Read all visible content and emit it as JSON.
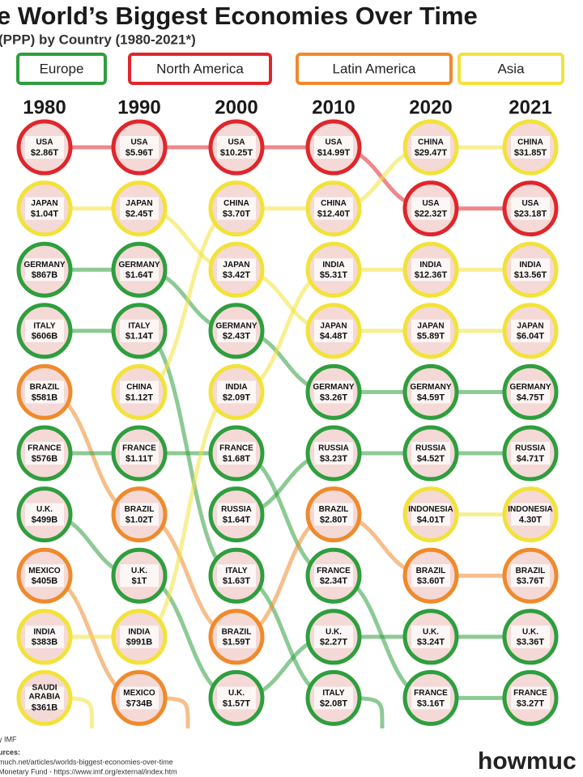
{
  "header": {
    "title": "e World’s Biggest Economies Over Time",
    "subtitle": "(PPP) by Country (1980-2021*)"
  },
  "legend": [
    {
      "label": "Europe",
      "color": "#2f9e3e"
    },
    {
      "label": "North America",
      "color": "#e0262b"
    },
    {
      "label": "Latin America",
      "color": "#ef8a2c"
    },
    {
      "label": "Asia",
      "color": "#f2e23a"
    }
  ],
  "columns": [
    {
      "year": "1980",
      "nodes": [
        {
          "name": "USA",
          "value": "$2.86T",
          "ring": "#e0262b"
        },
        {
          "name": "JAPAN",
          "value": "$1.04T",
          "ring": "#f2e23a"
        },
        {
          "name": "GERMANY",
          "value": "$867B",
          "ring": "#2f9e3e"
        },
        {
          "name": "ITALY",
          "value": "$606B",
          "ring": "#2f9e3e"
        },
        {
          "name": "BRAZIL",
          "value": "$581B",
          "ring": "#ef8a2c"
        },
        {
          "name": "FRANCE",
          "value": "$576B",
          "ring": "#2f9e3e"
        },
        {
          "name": "U.K.",
          "value": "$499B",
          "ring": "#2f9e3e"
        },
        {
          "name": "MEXICO",
          "value": "$405B",
          "ring": "#ef8a2c"
        },
        {
          "name": "INDIA",
          "value": "$383B",
          "ring": "#f2e23a"
        },
        {
          "name": "SAUDI ARABIA",
          "value": "$361B",
          "ring": "#f2e23a"
        }
      ]
    },
    {
      "year": "1990",
      "nodes": [
        {
          "name": "USA",
          "value": "$5.96T",
          "ring": "#e0262b"
        },
        {
          "name": "JAPAN",
          "value": "$2.45T",
          "ring": "#f2e23a"
        },
        {
          "name": "GERMANY",
          "value": "$1.64T",
          "ring": "#2f9e3e"
        },
        {
          "name": "ITALY",
          "value": "$1.14T",
          "ring": "#2f9e3e"
        },
        {
          "name": "CHINA",
          "value": "$1.12T",
          "ring": "#f2e23a"
        },
        {
          "name": "FRANCE",
          "value": "$1.11T",
          "ring": "#2f9e3e"
        },
        {
          "name": "BRAZIL",
          "value": "$1.02T",
          "ring": "#ef8a2c"
        },
        {
          "name": "U.K.",
          "value": "$1T",
          "ring": "#2f9e3e"
        },
        {
          "name": "INDIA",
          "value": "$991B",
          "ring": "#f2e23a"
        },
        {
          "name": "MEXICO",
          "value": "$734B",
          "ring": "#ef8a2c"
        }
      ]
    },
    {
      "year": "2000",
      "nodes": [
        {
          "name": "USA",
          "value": "$10.25T",
          "ring": "#e0262b"
        },
        {
          "name": "CHINA",
          "value": "$3.70T",
          "ring": "#f2e23a"
        },
        {
          "name": "JAPAN",
          "value": "$3.42T",
          "ring": "#f2e23a"
        },
        {
          "name": "GERMANY",
          "value": "$2.43T",
          "ring": "#2f9e3e"
        },
        {
          "name": "INDIA",
          "value": "$2.09T",
          "ring": "#f2e23a"
        },
        {
          "name": "FRANCE",
          "value": "$1.68T",
          "ring": "#2f9e3e"
        },
        {
          "name": "RUSSIA",
          "value": "$1.64T",
          "ring": "#2f9e3e"
        },
        {
          "name": "ITALY",
          "value": "$1.63T",
          "ring": "#2f9e3e"
        },
        {
          "name": "BRAZIL",
          "value": "$1.59T",
          "ring": "#ef8a2c"
        },
        {
          "name": "U.K.",
          "value": "$1.57T",
          "ring": "#2f9e3e"
        }
      ]
    },
    {
      "year": "2010",
      "nodes": [
        {
          "name": "USA",
          "value": "$14.99T",
          "ring": "#e0262b"
        },
        {
          "name": "CHINA",
          "value": "$12.40T",
          "ring": "#f2e23a"
        },
        {
          "name": "INDIA",
          "value": "$5.31T",
          "ring": "#f2e23a"
        },
        {
          "name": "JAPAN",
          "value": "$4.48T",
          "ring": "#f2e23a"
        },
        {
          "name": "GERMANY",
          "value": "$3.26T",
          "ring": "#2f9e3e"
        },
        {
          "name": "RUSSIA",
          "value": "$3.23T",
          "ring": "#2f9e3e"
        },
        {
          "name": "BRAZIL",
          "value": "$2.80T",
          "ring": "#ef8a2c"
        },
        {
          "name": "FRANCE",
          "value": "$2.34T",
          "ring": "#2f9e3e"
        },
        {
          "name": "U.K.",
          "value": "$2.27T",
          "ring": "#2f9e3e"
        },
        {
          "name": "ITALY",
          "value": "$2.08T",
          "ring": "#2f9e3e"
        }
      ]
    },
    {
      "year": "2020",
      "nodes": [
        {
          "name": "CHINA",
          "value": "$29.47T",
          "ring": "#f2e23a"
        },
        {
          "name": "USA",
          "value": "$22.32T",
          "ring": "#e0262b"
        },
        {
          "name": "INDIA",
          "value": "$12.36T",
          "ring": "#f2e23a"
        },
        {
          "name": "JAPAN",
          "value": "$5.89T",
          "ring": "#f2e23a"
        },
        {
          "name": "GERMANY",
          "value": "$4.59T",
          "ring": "#2f9e3e"
        },
        {
          "name": "RUSSIA",
          "value": "$4.52T",
          "ring": "#2f9e3e"
        },
        {
          "name": "INDONESIA",
          "value": "$4.01T",
          "ring": "#f2e23a"
        },
        {
          "name": "BRAZIL",
          "value": "$3.60T",
          "ring": "#ef8a2c"
        },
        {
          "name": "U.K.",
          "value": "$3.24T",
          "ring": "#2f9e3e"
        },
        {
          "name": "FRANCE",
          "value": "$3.16T",
          "ring": "#2f9e3e"
        }
      ]
    },
    {
      "year": "2021",
      "nodes": [
        {
          "name": "CHINA",
          "value": "$31.85T",
          "ring": "#f2e23a"
        },
        {
          "name": "USA",
          "value": "$23.18T",
          "ring": "#e0262b"
        },
        {
          "name": "INDIA",
          "value": "$13.56T",
          "ring": "#f2e23a"
        },
        {
          "name": "JAPAN",
          "value": "$6.04T",
          "ring": "#f2e23a"
        },
        {
          "name": "GERMANY",
          "value": "$4.75T",
          "ring": "#2f9e3e"
        },
        {
          "name": "RUSSIA",
          "value": "$4.71T",
          "ring": "#2f9e3e"
        },
        {
          "name": "INDONESIA",
          "value": "4.30T",
          "ring": "#f2e23a"
        },
        {
          "name": "BRAZIL",
          "value": "$3.76T",
          "ring": "#ef8a2c"
        },
        {
          "name": "U.K.",
          "value": "$3.36T",
          "ring": "#2f9e3e"
        },
        {
          "name": "FRANCE",
          "value": "$3.27T",
          "ring": "#2f9e3e"
        }
      ]
    }
  ],
  "footer": {
    "note": "y IMF",
    "sources": "urces:",
    "link1": "much.net/articles/worlds-biggest-economies-over-time",
    "link2": "Monetary Fund - https://www.imf.org/external/index.htm",
    "logo": "howmuc"
  }
}
